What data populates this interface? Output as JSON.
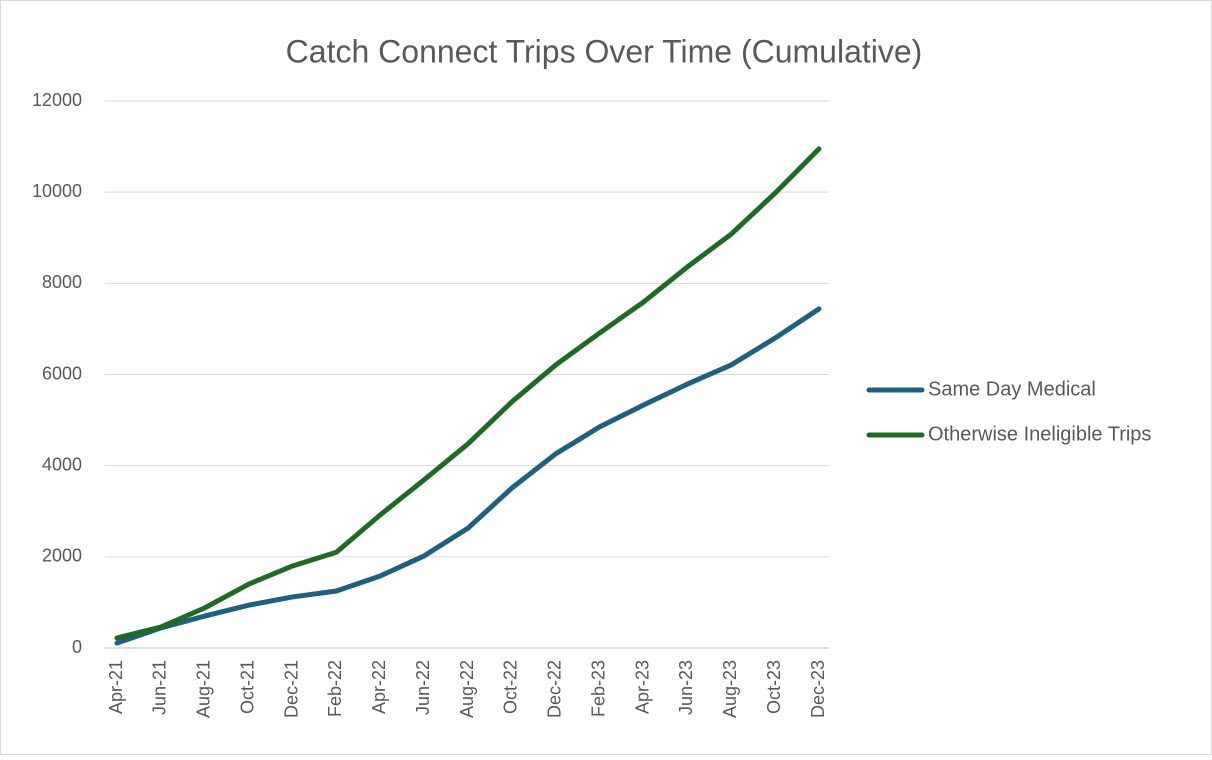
{
  "chart_data": {
    "type": "line",
    "title": "Catch Connect Trips Over Time (Cumulative)",
    "categories": [
      "Apr-21",
      "Jun-21",
      "Aug-21",
      "Oct-21",
      "Dec-21",
      "Feb-22",
      "Apr-22",
      "Jun-22",
      "Aug-22",
      "Oct-22",
      "Dec-22",
      "Feb-23",
      "Apr-23",
      "Jun-23",
      "Aug-23",
      "Oct-23",
      "Dec-23"
    ],
    "series": [
      {
        "name": "Same Day Medical",
        "color": "#1f5f80",
        "values": [
          110,
          440,
          700,
          940,
          1120,
          1250,
          1580,
          2020,
          2630,
          3510,
          4260,
          4850,
          5330,
          5790,
          6210,
          6800,
          7440
        ]
      },
      {
        "name": "Otherwise Ineligible Trips",
        "color": "#1e6b26",
        "values": [
          220,
          460,
          880,
          1400,
          1800,
          2100,
          2920,
          3690,
          4480,
          5400,
          6210,
          6910,
          7590,
          8360,
          9080,
          9980,
          10950
        ]
      }
    ],
    "ylim": [
      0,
      12000
    ],
    "yticks": [
      0,
      2000,
      4000,
      6000,
      8000,
      10000,
      12000
    ],
    "grid": true,
    "legend": "right"
  }
}
